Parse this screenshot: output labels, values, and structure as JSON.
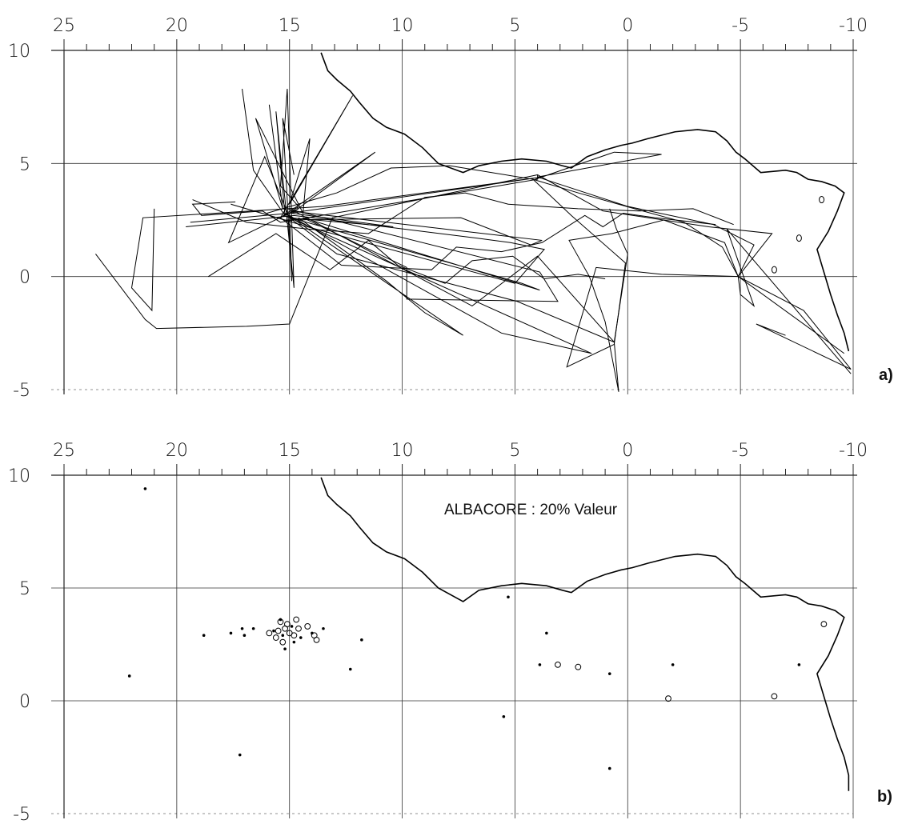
{
  "figure": {
    "panels": [
      {
        "id": "a",
        "label": "a)",
        "annotation": "",
        "x_ticks": [
          "25",
          "20",
          "15",
          "10",
          "5",
          "0",
          "-5",
          "-10"
        ],
        "y_ticks": [
          "10",
          "5",
          "0",
          "-5"
        ]
      },
      {
        "id": "b",
        "label": "b)",
        "annotation": "ALBACORE  :  20% Valeur",
        "x_ticks": [
          "25",
          "20",
          "15",
          "10",
          "5",
          "0",
          "-5",
          "-10"
        ],
        "y_ticks": [
          "10",
          "5",
          "0",
          "-5"
        ]
      }
    ]
  },
  "chart_data": [
    {
      "type": "map",
      "panel": "a",
      "x_axis": "longitude (east positive, reversed)",
      "xlim": [
        25,
        -10
      ],
      "ylim": [
        -5,
        10
      ],
      "grid": true,
      "coastline": [
        [
          13.6,
          9.9
        ],
        [
          13.3,
          9.1
        ],
        [
          12.9,
          8.7
        ],
        [
          12.3,
          8.2
        ],
        [
          11.9,
          7.7
        ],
        [
          11.3,
          7.0
        ],
        [
          10.7,
          6.6
        ],
        [
          9.9,
          6.3
        ],
        [
          9.1,
          5.7
        ],
        [
          8.4,
          5.0
        ],
        [
          7.3,
          4.6
        ],
        [
          6.6,
          4.9
        ],
        [
          5.6,
          5.1
        ],
        [
          4.7,
          5.2
        ],
        [
          3.6,
          5.1
        ],
        [
          2.9,
          4.9
        ],
        [
          2.5,
          4.8
        ],
        [
          1.8,
          5.3
        ],
        [
          1.0,
          5.6
        ],
        [
          0.3,
          5.8
        ],
        [
          -0.2,
          5.9
        ],
        [
          -0.9,
          6.1
        ],
        [
          -2.1,
          6.4
        ],
        [
          -3.1,
          6.5
        ],
        [
          -3.9,
          6.4
        ],
        [
          -4.4,
          6.0
        ],
        [
          -4.8,
          5.5
        ],
        [
          -5.2,
          5.2
        ],
        [
          -5.9,
          4.6
        ],
        [
          -7.0,
          4.7
        ],
        [
          -7.5,
          4.6
        ],
        [
          -8.0,
          4.3
        ],
        [
          -8.6,
          4.2
        ],
        [
          -9.2,
          4.0
        ],
        [
          -9.6,
          3.7
        ],
        [
          -9.3,
          2.9
        ],
        [
          -8.9,
          2.0
        ],
        [
          -8.4,
          1.2
        ],
        [
          -8.7,
          0.2
        ],
        [
          -9.0,
          -0.8
        ],
        [
          -9.3,
          -1.7
        ],
        [
          -9.6,
          -2.5
        ],
        [
          -9.8,
          -3.3
        ]
      ],
      "tracks": [
        [
          [
            23.6,
            1.0
          ],
          [
            21.4,
            -1.9
          ],
          [
            20.9,
            -2.3
          ],
          [
            16.9,
            -2.2
          ],
          [
            15.0,
            -2.1
          ],
          [
            13.1,
            2.6
          ],
          [
            4.0,
            4.5
          ],
          [
            4.0,
            4.3
          ],
          [
            15.4,
            2.4
          ],
          [
            16.2,
            2.9
          ],
          [
            18.9,
            2.7
          ],
          [
            19.3,
            3.2
          ],
          [
            17.4,
            3.3
          ]
        ],
        [
          [
            21.0,
            3.0
          ],
          [
            21.1,
            -1.5
          ],
          [
            22.0,
            -0.5
          ],
          [
            21.5,
            2.6
          ],
          [
            13.5,
            3.1
          ],
          [
            3.8,
            4.4
          ],
          [
            15.0,
            2.8
          ],
          [
            19.4,
            2.4
          ]
        ],
        [
          [
            19.6,
            2.2
          ],
          [
            14.8,
            2.7
          ],
          [
            6.7,
            1.7
          ],
          [
            5.2,
            1.5
          ],
          [
            3.7,
            1.2
          ],
          [
            5.0,
            -0.3
          ],
          [
            14.2,
            2.2
          ],
          [
            17.6,
            3.2
          ],
          [
            15.2,
            2.5
          ],
          [
            7.4,
            2.6
          ],
          [
            4.3,
            1.4
          ],
          [
            3.8,
            1.6
          ],
          [
            15.0,
            2.9
          ]
        ],
        [
          [
            15.3,
            2.7
          ],
          [
            4.7,
            -0.3
          ],
          [
            3.9,
            -0.6
          ],
          [
            14.4,
            2.6
          ],
          [
            9.8,
            0.4
          ],
          [
            9.8,
            -1.0
          ],
          [
            3.1,
            -1.1
          ],
          [
            3.9,
            0.2
          ],
          [
            15.1,
            3.0
          ]
        ],
        [
          [
            17.1,
            8.3
          ],
          [
            16.6,
            4.7
          ],
          [
            15.2,
            2.7
          ],
          [
            15.6,
            7.3
          ],
          [
            14.8,
            -0.5
          ],
          [
            15.1,
            8.3
          ],
          [
            15.4,
            4.0
          ],
          [
            14.6,
            3.1
          ],
          [
            15.0,
            2.8
          ],
          [
            14.9,
            -0.2
          ],
          [
            15.3,
            7.0
          ],
          [
            14.8,
            4.5
          ]
        ],
        [
          [
            15.9,
            7.6
          ],
          [
            15.3,
            3.0
          ],
          [
            16.5,
            7.0
          ],
          [
            14.4,
            2.8
          ],
          [
            14.1,
            6.1
          ],
          [
            15.0,
            3.2
          ],
          [
            12.2,
            8.0
          ],
          [
            15.4,
            2.6
          ],
          [
            11.2,
            5.5
          ],
          [
            14.9,
            2.8
          ],
          [
            10.4,
            2.2
          ],
          [
            15.0,
            2.6
          ],
          [
            16.1,
            5.3
          ],
          [
            17.7,
            1.5
          ],
          [
            14.6,
            3.0
          ]
        ],
        [
          [
            14.6,
            2.6
          ],
          [
            10.7,
            -0.2
          ],
          [
            9.0,
            -1.6
          ],
          [
            7.3,
            -2.6
          ],
          [
            15.2,
            2.8
          ],
          [
            5.6,
            -2.5
          ],
          [
            1.6,
            -3.4
          ],
          [
            15.0,
            2.6
          ],
          [
            12.9,
            1.0
          ],
          [
            4.9,
            -1.1
          ],
          [
            0.6,
            -2.9
          ],
          [
            4.0,
            0.9
          ],
          [
            6.9,
            -1.3
          ],
          [
            14.8,
            2.9
          ]
        ],
        [
          [
            4.1,
            4.3
          ],
          [
            0.6,
            5.5
          ],
          [
            -1.5,
            5.4
          ],
          [
            4.0,
            4.4
          ],
          [
            0.0,
            3.1
          ],
          [
            -3.8,
            2.3
          ],
          [
            -5.6,
            1.4
          ],
          [
            -4.9,
            0.0
          ],
          [
            -5.0,
            -0.8
          ],
          [
            -5.6,
            -1.3
          ],
          [
            -4.4,
            2.1
          ],
          [
            -9.9,
            -4.3
          ]
        ],
        [
          [
            4.2,
            4.3
          ],
          [
            2.5,
            2.7
          ],
          [
            0.1,
            0.6
          ],
          [
            0.6,
            -3.0
          ],
          [
            2.7,
            -4.0
          ],
          [
            1.4,
            0.4
          ],
          [
            -1.5,
            0.1
          ],
          [
            -4.9,
            0.0
          ],
          [
            -7.8,
            -1.5
          ],
          [
            -9.9,
            -4.1
          ],
          [
            -5.7,
            -2.1
          ],
          [
            -7.0,
            -2.6
          ]
        ],
        [
          [
            4.0,
            4.5
          ],
          [
            1.1,
            2.9
          ],
          [
            -3.6,
            2.2
          ],
          [
            -6.4,
            1.9
          ],
          [
            -4.9,
            0.0
          ],
          [
            -9.6,
            -3.4
          ]
        ],
        [
          [
            0.8,
            3.0
          ],
          [
            0.5,
            2.1
          ],
          [
            0.0,
            1.0
          ],
          [
            0.6,
            -2.9
          ],
          [
            0.4,
            -5.1
          ],
          [
            1.0,
            -2.0
          ],
          [
            1.7,
            0.0
          ],
          [
            2.6,
            1.6
          ],
          [
            0.7,
            1.9
          ],
          [
            -1.6,
            2.5
          ],
          [
            -4.3,
            1.5
          ],
          [
            -4.9,
            0.0
          ]
        ],
        [
          [
            18.6,
            0.0
          ],
          [
            15.6,
            1.9
          ],
          [
            13.2,
            0.3
          ],
          [
            11.5,
            1.6
          ],
          [
            10.2,
            0.5
          ],
          [
            8.1,
            -0.3
          ],
          [
            6.9,
            0.7
          ],
          [
            5.1,
            0.9
          ],
          [
            3.7,
            -0.1
          ],
          [
            2.2,
            0.1
          ],
          [
            1.0,
            -0.1
          ]
        ],
        [
          [
            19.3,
            3.4
          ],
          [
            16.9,
            2.4
          ],
          [
            14.2,
            2.1
          ],
          [
            11.5,
            1.9
          ],
          [
            9.0,
            3.5
          ],
          [
            7.2,
            3.7
          ],
          [
            5.3,
            3.2
          ],
          [
            2.2,
            3.0
          ],
          [
            -0.5,
            2.9
          ],
          [
            -2.9,
            3.0
          ],
          [
            -4.7,
            2.3
          ]
        ],
        [
          [
            15.4,
            2.6
          ],
          [
            12.7,
            0.5
          ],
          [
            8.7,
            0.3
          ],
          [
            7.6,
            1.3
          ],
          [
            5.6,
            1.1
          ],
          [
            3.8,
            1.5
          ],
          [
            1.9,
            2.7
          ],
          [
            1.1,
            2.2
          ],
          [
            0.2,
            2.8
          ],
          [
            -1.2,
            2.6
          ],
          [
            -3.9,
            2.3
          ]
        ],
        [
          [
            16.0,
            2.8
          ],
          [
            12.9,
            3.7
          ],
          [
            10.5,
            4.8
          ],
          [
            7.9,
            4.9
          ],
          [
            4.2,
            4.3
          ],
          [
            2.2,
            3.7
          ],
          [
            -0.3,
            3.0
          ],
          [
            -2.5,
            2.4
          ],
          [
            -4.2,
            1.3
          ],
          [
            -4.9,
            0.0
          ]
        ]
      ],
      "islands": [
        [
          -6.5,
          0.3
        ],
        [
          -8.6,
          3.4
        ],
        [
          -7.6,
          1.7
        ]
      ]
    },
    {
      "type": "scatter",
      "panel": "b",
      "x_axis": "longitude (east positive, reversed)",
      "xlim": [
        25,
        -10
      ],
      "ylim": [
        -5,
        10
      ],
      "grid": true,
      "annotation": "ALBACORE  :  20% Valeur",
      "points_dot": [
        [
          21.4,
          9.4
        ],
        [
          18.8,
          2.9
        ],
        [
          17.6,
          3.0
        ],
        [
          17.1,
          3.2
        ],
        [
          17.0,
          2.9
        ],
        [
          16.6,
          3.2
        ],
        [
          14.9,
          3.3
        ],
        [
          14.0,
          3.0
        ],
        [
          13.5,
          3.2
        ],
        [
          12.3,
          1.4
        ],
        [
          11.8,
          2.7
        ],
        [
          22.1,
          1.1
        ],
        [
          17.2,
          -2.4
        ],
        [
          15.4,
          3.6
        ],
        [
          15.2,
          2.3
        ],
        [
          14.8,
          2.6
        ],
        [
          5.3,
          4.6
        ],
        [
          5.5,
          -0.7
        ],
        [
          3.6,
          3.0
        ],
        [
          3.9,
          1.6
        ],
        [
          0.8,
          1.2
        ],
        [
          0.8,
          -3.0
        ],
        [
          -2.0,
          1.6
        ],
        [
          -7.6,
          1.6
        ],
        [
          15.3,
          2.9
        ],
        [
          15.7,
          3.1
        ],
        [
          14.5,
          2.8
        ]
      ],
      "points_circle": [
        [
          15.9,
          3.0
        ],
        [
          15.5,
          3.1
        ],
        [
          15.2,
          3.2
        ],
        [
          15.0,
          3.0
        ],
        [
          14.8,
          2.9
        ],
        [
          15.6,
          2.8
        ],
        [
          15.3,
          2.6
        ],
        [
          14.6,
          3.2
        ],
        [
          14.2,
          3.3
        ],
        [
          13.9,
          2.9
        ],
        [
          14.7,
          3.6
        ],
        [
          15.1,
          3.4
        ],
        [
          15.4,
          3.5
        ],
        [
          13.8,
          2.7
        ],
        [
          3.1,
          1.6
        ],
        [
          2.2,
          1.5
        ],
        [
          -1.8,
          0.1
        ],
        [
          -6.5,
          0.2
        ],
        [
          -8.7,
          3.4
        ]
      ],
      "coastline": [
        [
          13.6,
          9.9
        ],
        [
          13.3,
          9.1
        ],
        [
          12.9,
          8.7
        ],
        [
          12.3,
          8.2
        ],
        [
          11.9,
          7.7
        ],
        [
          11.3,
          7.0
        ],
        [
          10.7,
          6.6
        ],
        [
          9.9,
          6.3
        ],
        [
          9.1,
          5.7
        ],
        [
          8.4,
          5.0
        ],
        [
          7.3,
          4.4
        ],
        [
          6.6,
          4.9
        ],
        [
          5.6,
          5.1
        ],
        [
          4.7,
          5.2
        ],
        [
          3.6,
          5.1
        ],
        [
          2.9,
          4.9
        ],
        [
          2.5,
          4.8
        ],
        [
          1.8,
          5.3
        ],
        [
          1.0,
          5.6
        ],
        [
          0.3,
          5.8
        ],
        [
          -0.2,
          5.9
        ],
        [
          -0.9,
          6.1
        ],
        [
          -2.1,
          6.4
        ],
        [
          -3.1,
          6.5
        ],
        [
          -3.9,
          6.4
        ],
        [
          -4.4,
          6.0
        ],
        [
          -4.8,
          5.5
        ],
        [
          -5.2,
          5.2
        ],
        [
          -5.9,
          4.6
        ],
        [
          -7.0,
          4.7
        ],
        [
          -7.5,
          4.6
        ],
        [
          -8.0,
          4.3
        ],
        [
          -8.6,
          4.2
        ],
        [
          -9.2,
          4.0
        ],
        [
          -9.6,
          3.7
        ],
        [
          -9.3,
          2.9
        ],
        [
          -8.9,
          2.0
        ],
        [
          -8.4,
          1.2
        ],
        [
          -8.7,
          0.2
        ],
        [
          -9.0,
          -0.8
        ],
        [
          -9.3,
          -1.7
        ],
        [
          -9.6,
          -2.5
        ],
        [
          -9.8,
          -3.3
        ],
        [
          -9.8,
          -4.0
        ]
      ]
    }
  ]
}
